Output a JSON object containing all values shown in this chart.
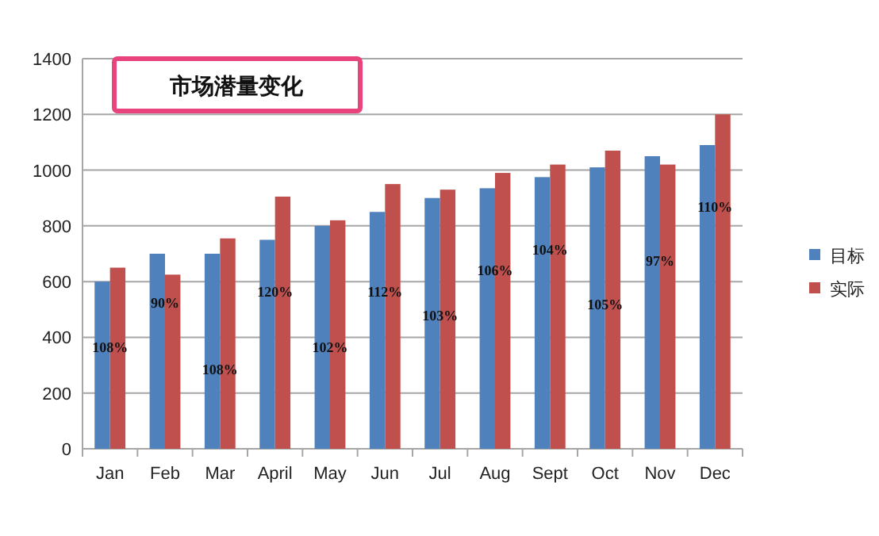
{
  "chart_data": {
    "type": "bar",
    "title": "市场潜量变化",
    "categories": [
      "Jan",
      "Feb",
      "Mar",
      "April",
      "May",
      "Jun",
      "Jul",
      "Aug",
      "Sept",
      "Oct",
      "Nov",
      "Dec"
    ],
    "series": [
      {
        "name": "目标",
        "color": "#4f81bd",
        "values": [
          600,
          700,
          700,
          750,
          800,
          850,
          900,
          935,
          975,
          1010,
          1050,
          1090
        ]
      },
      {
        "name": "实际",
        "color": "#c0504d",
        "values": [
          650,
          625,
          755,
          905,
          820,
          950,
          930,
          990,
          1020,
          1070,
          1020,
          1200
        ]
      }
    ],
    "ylim": [
      0,
      1400
    ],
    "yticks": [
      0,
      200,
      400,
      600,
      800,
      1000,
      1200,
      1400
    ],
    "grid": "y",
    "legend": "right",
    "annotations": [
      {
        "text": "108%",
        "x": "Jan",
        "y": 370
      },
      {
        "text": "90%",
        "x": "Feb",
        "y": 530
      },
      {
        "text": "108%",
        "x": "Mar",
        "y": 290
      },
      {
        "text": "120%",
        "x": "April",
        "y": 570
      },
      {
        "text": "102%",
        "x": "May",
        "y": 370
      },
      {
        "text": "112%",
        "x": "Jun",
        "y": 570
      },
      {
        "text": "103%",
        "x": "Jul",
        "y": 485
      },
      {
        "text": "106%",
        "x": "Aug",
        "y": 645
      },
      {
        "text": "104%",
        "x": "Sept",
        "y": 720
      },
      {
        "text": "105%",
        "x": "Oct",
        "y": 525
      },
      {
        "text": "97%",
        "x": "Nov",
        "y": 680
      },
      {
        "text": "110%",
        "x": "Dec",
        "y": 875
      }
    ]
  }
}
